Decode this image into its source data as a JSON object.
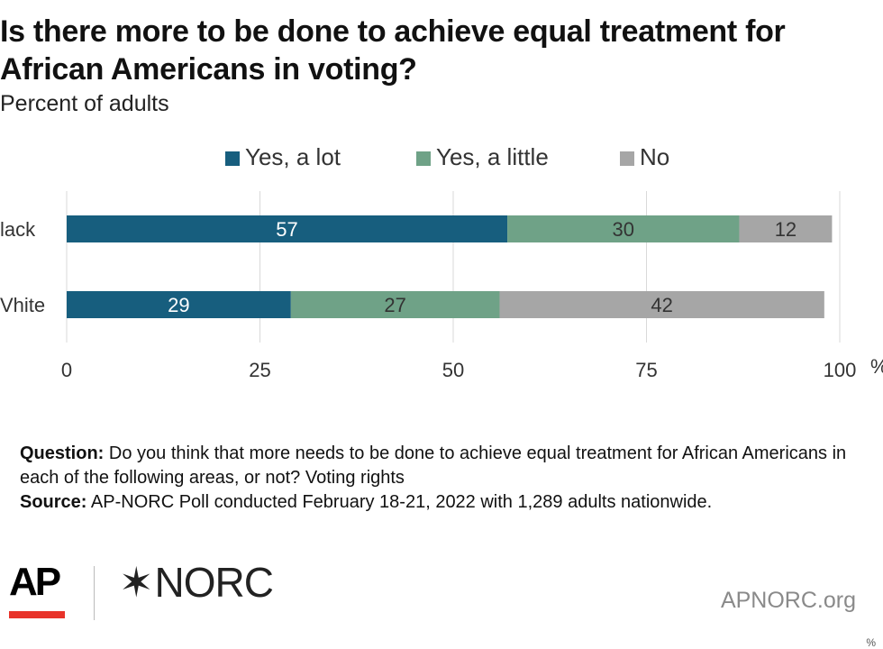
{
  "title": "Is there more to be done to achieve equal treatment for African Americans in voting?",
  "subtitle": "Percent of adults",
  "legend": [
    {
      "label": "Yes, a lot",
      "color": "#175e7e"
    },
    {
      "label": "Yes, a little",
      "color": "#6fa287"
    },
    {
      "label": "No",
      "color": "#a6a6a6"
    }
  ],
  "chart_data": {
    "type": "bar",
    "orientation": "horizontal",
    "stacked": true,
    "categories": [
      "Black",
      "White"
    ],
    "category_labels_visible": [
      "lack",
      "Vhite"
    ],
    "series": [
      {
        "name": "Yes, a lot",
        "values": [
          57,
          29
        ],
        "color": "#175e7e",
        "label_color": "#ffffff"
      },
      {
        "name": "Yes, a little",
        "values": [
          30,
          27
        ],
        "color": "#6fa287",
        "label_color": "#333333"
      },
      {
        "name": "No",
        "values": [
          12,
          42
        ],
        "color": "#a6a6a6",
        "label_color": "#333333"
      }
    ],
    "xlim": [
      0,
      100
    ],
    "xticks": [
      0,
      25,
      50,
      75,
      100
    ],
    "x_unit": "%",
    "grid": true,
    "legend_position": "top"
  },
  "notes": {
    "question_label": "Question:",
    "question_text": " Do you think that more needs to be done to achieve equal treatment for African Americans in each of the following areas, or not? Voting rights",
    "source_label": "Source:",
    "source_text": " AP-NORC Poll conducted February 18-21, 2022 with 1,289 adults nationwide."
  },
  "branding": {
    "ap_logo": "AP",
    "norc_star": "✶",
    "norc_logo": "NORC",
    "site": "APNORC.org",
    "corner_mark": "%"
  }
}
